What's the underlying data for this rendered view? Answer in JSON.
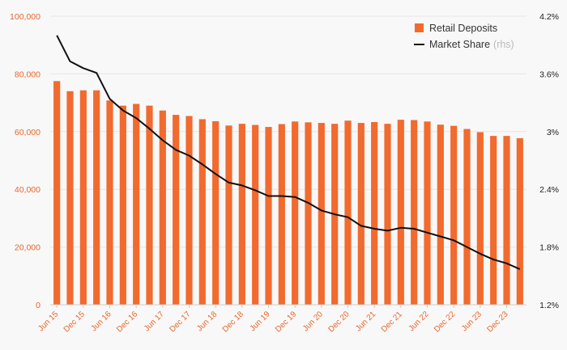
{
  "chart_data": {
    "type": "bar",
    "series": [
      {
        "name": "Retail Deposits",
        "type": "bar",
        "axis": "left",
        "color": "#f26a2e",
        "values": [
          77500,
          74000,
          74300,
          74300,
          70800,
          69000,
          69600,
          69000,
          67300,
          65800,
          65400,
          64300,
          63600,
          62100,
          62700,
          62300,
          61600,
          62600,
          63500,
          63200,
          63000,
          62700,
          63800,
          63000,
          63300,
          62700,
          64100,
          64000,
          63500,
          62400,
          62000,
          60900,
          59800,
          58500,
          58500,
          57700
        ]
      },
      {
        "name": "Market Share",
        "name_suffix": "(rhs)",
        "type": "line",
        "axis": "right",
        "color": "#111111",
        "values": [
          4.0,
          3.73,
          3.66,
          3.61,
          3.34,
          3.22,
          3.14,
          3.03,
          2.91,
          2.81,
          2.75,
          2.66,
          2.56,
          2.47,
          2.44,
          2.39,
          2.33,
          2.33,
          2.32,
          2.26,
          2.18,
          2.14,
          2.11,
          2.02,
          1.99,
          1.97,
          2.0,
          1.99,
          1.95,
          1.91,
          1.87,
          1.8,
          1.73,
          1.67,
          1.63,
          1.57
        ]
      }
    ],
    "x_tick_labels": [
      "Jun 15",
      "Dec 15",
      "Jun 16",
      "Dec 16",
      "Jun 17",
      "Dec 17",
      "Jun 18",
      "Dec 18",
      "Jun 19",
      "Dec 19",
      "Jun 20",
      "Dec 20",
      "Jun 21",
      "Dec 21",
      "Jun 22",
      "Dec 22",
      "Jun 23",
      "Dec 23"
    ],
    "y_left": {
      "min": 0,
      "max": 100000,
      "ticks": [
        0,
        20000,
        40000,
        60000,
        80000,
        100000
      ],
      "tick_labels": [
        "0",
        "20,000",
        "40,000",
        "60,000",
        "80,000",
        "100,000"
      ],
      "color": "#e8662a"
    },
    "y_right": {
      "min": 1.2,
      "max": 4.2,
      "ticks": [
        1.2,
        1.8,
        2.4,
        3.0,
        3.6,
        4.2
      ],
      "tick_labels": [
        "1.2%",
        "1.8%",
        "2.4%",
        "3%",
        "3.6%",
        "4.2%"
      ],
      "color": "#222222"
    },
    "grid": true,
    "gridline_color": "#e6e6e6",
    "legend_position": "top-right",
    "title": "",
    "xlabel": "",
    "ylabel": ""
  }
}
